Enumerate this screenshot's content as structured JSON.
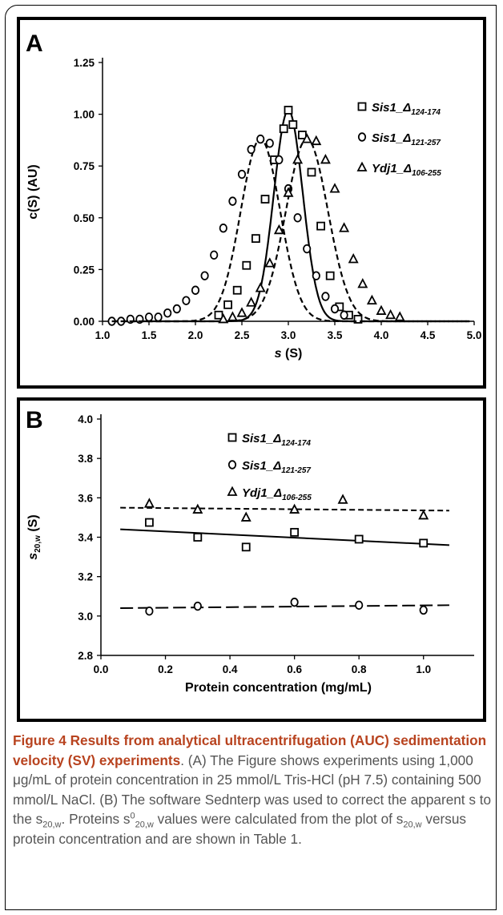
{
  "chart_data": [
    {
      "panel": "A",
      "type": "line",
      "xlabel": "s (S)",
      "ylabel": "c(S) (AU)",
      "xlim": [
        1.0,
        5.0
      ],
      "ylim": [
        0.0,
        1.25
      ],
      "x_ticks": [
        "1.0",
        "1.5",
        "2.0",
        "2.5",
        "3.0",
        "3.5",
        "4.0",
        "4.5",
        "5.0"
      ],
      "y_ticks": [
        "0.00",
        "0.25",
        "0.50",
        "0.75",
        "1.00",
        "1.25"
      ],
      "grid": false,
      "legend_position": "top-right",
      "series": [
        {
          "name": "Sis1_Δ124-174",
          "label_main": "Sis1_Δ",
          "label_sub": "124-174",
          "marker": "square",
          "line": "solid",
          "peak": 3.0,
          "height": 1.02,
          "width": 0.22,
          "x": [
            2.25,
            2.35,
            2.45,
            2.55,
            2.65,
            2.75,
            2.85,
            2.95,
            3.0,
            3.05,
            3.15,
            3.25,
            3.35,
            3.45,
            3.55,
            3.65,
            3.75
          ],
          "y": [
            0.03,
            0.08,
            0.15,
            0.27,
            0.4,
            0.59,
            0.78,
            0.93,
            1.02,
            0.95,
            0.9,
            0.72,
            0.46,
            0.22,
            0.07,
            0.03,
            0.01
          ]
        },
        {
          "name": "Sis1_Δ121-257",
          "label_main": "Sis1_Δ",
          "label_sub": "121-257",
          "marker": "circle",
          "line": "dashed",
          "peak": 2.7,
          "height": 0.88,
          "width": 0.3,
          "x": [
            1.1,
            1.2,
            1.3,
            1.4,
            1.5,
            1.6,
            1.7,
            1.8,
            1.9,
            2.0,
            2.1,
            2.2,
            2.3,
            2.4,
            2.5,
            2.6,
            2.7,
            2.8,
            2.9,
            3.0,
            3.1,
            3.2,
            3.3,
            3.4,
            3.5,
            3.6
          ],
          "y": [
            0.0,
            0.0,
            0.01,
            0.01,
            0.02,
            0.02,
            0.04,
            0.06,
            0.1,
            0.15,
            0.22,
            0.32,
            0.45,
            0.58,
            0.71,
            0.83,
            0.88,
            0.86,
            0.78,
            0.64,
            0.5,
            0.35,
            0.22,
            0.12,
            0.06,
            0.03
          ]
        },
        {
          "name": "Ydj1_Δ106-255",
          "label_main": "Ydj1_Δ",
          "label_sub": "106-255",
          "marker": "triangle",
          "line": "dashed",
          "peak": 3.2,
          "height": 0.88,
          "width": 0.32,
          "x": [
            2.3,
            2.4,
            2.5,
            2.6,
            2.7,
            2.8,
            2.9,
            3.0,
            3.1,
            3.2,
            3.3,
            3.4,
            3.5,
            3.6,
            3.7,
            3.8,
            3.9,
            4.0,
            4.1,
            4.2
          ],
          "y": [
            0.01,
            0.02,
            0.04,
            0.09,
            0.16,
            0.28,
            0.44,
            0.62,
            0.78,
            0.88,
            0.87,
            0.78,
            0.64,
            0.45,
            0.3,
            0.18,
            0.1,
            0.05,
            0.03,
            0.02
          ]
        }
      ]
    },
    {
      "panel": "B",
      "type": "scatter",
      "xlabel": "Protein concentration (mg/mL)",
      "ylabel_main": "s",
      "ylabel_sub": "20,w",
      "ylabel_unit": " (S)",
      "xlim": [
        0.0,
        1.1
      ],
      "ylim": [
        2.8,
        4.0
      ],
      "x_ticks": [
        "0.0",
        "0.2",
        "0.4",
        "0.6",
        "0.8",
        "1.0"
      ],
      "y_ticks": [
        "2.8",
        "3.0",
        "3.2",
        "3.4",
        "3.6",
        "3.8",
        "4.0"
      ],
      "grid": false,
      "legend_position": "top-center",
      "series": [
        {
          "name": "Sis1_Δ124-174",
          "label_main": "Sis1_Δ",
          "label_sub": "124-174",
          "marker": "square",
          "line": "solid",
          "x": [
            0.15,
            0.3,
            0.45,
            0.6,
            0.8,
            1.0
          ],
          "y": [
            3.475,
            3.4,
            3.35,
            3.425,
            3.39,
            3.37
          ],
          "fit": [
            [
              0.06,
              3.44
            ],
            [
              1.08,
              3.36
            ]
          ]
        },
        {
          "name": "Sis1_Δ121-257",
          "label_main": "Sis1_Δ",
          "label_sub": "121-257",
          "marker": "circle",
          "line": "long-dashed",
          "x": [
            0.15,
            0.3,
            0.6,
            0.8,
            1.0
          ],
          "y": [
            3.025,
            3.05,
            3.07,
            3.055,
            3.03
          ],
          "fit": [
            [
              0.06,
              3.04
            ],
            [
              1.08,
              3.055
            ]
          ]
        },
        {
          "name": "Ydj1_Δ106-255",
          "label_main": "Ydj1_Δ",
          "label_sub": "106-255",
          "marker": "triangle",
          "line": "dashed",
          "x": [
            0.15,
            0.3,
            0.45,
            0.6,
            0.75,
            1.0
          ],
          "y": [
            3.57,
            3.54,
            3.5,
            3.54,
            3.59,
            3.51
          ],
          "fit": [
            [
              0.06,
              3.55
            ],
            [
              1.08,
              3.535
            ]
          ]
        }
      ]
    }
  ],
  "caption": {
    "lead": "Figure 4 Results from analytical ultracentrifugation (AUC) sedimentation velocity (SV) experiments",
    "body_1": ". (A) The Figure shows experiments using 1,000 μg/mL of protein concentration in 25 mmol/L Tris-HCl (pH 7.5) containing 500 mmol/L NaCl. (B) The software Sednterp was used to correct the apparent s to the s",
    "sub_1": "20,w",
    "body_2": ". Proteins s",
    "sup_2": "0",
    "sub_2": "20,w",
    "body_3": " values were calculated from the plot of s",
    "sub_3": "20,w",
    "body_4": " versus protein concentration and are shown in Table 1."
  }
}
